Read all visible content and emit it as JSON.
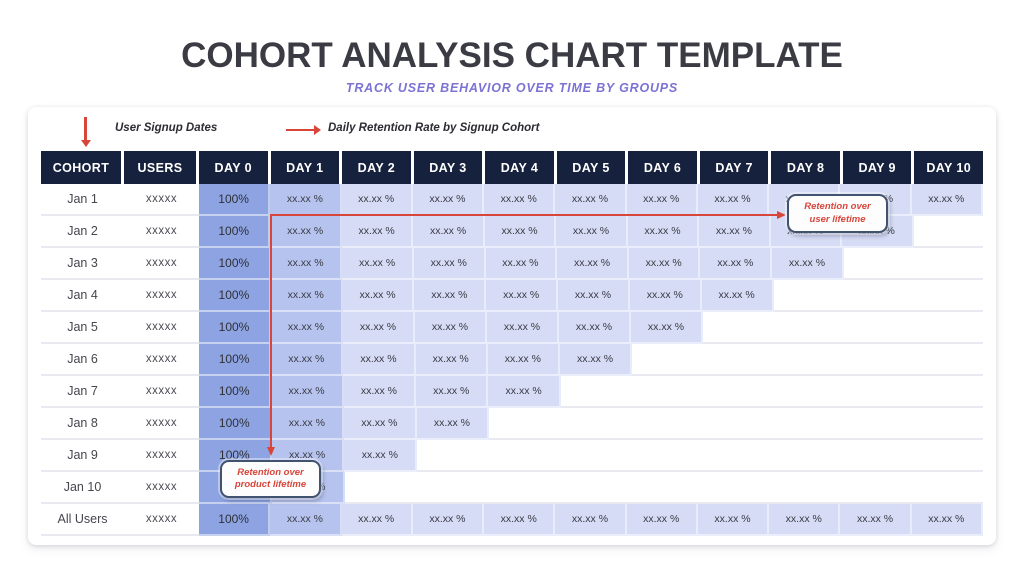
{
  "page": {
    "title": "COHORT ANALYSIS CHART TEMPLATE",
    "subtitle": "TRACK USER BEHAVIOR OVER TIME BY GROUPS"
  },
  "legend": {
    "signup_label": "User Signup Dates",
    "retention_label": "Daily Retention Rate by Signup Cohort"
  },
  "callouts": {
    "user_lifetime": "Retention over user lifetime",
    "product_lifetime": "Retention over product lifetime"
  },
  "table": {
    "columns": [
      "COHORT",
      "USERS",
      "DAY 0",
      "DAY 1",
      "DAY 2",
      "DAY 3",
      "DAY 4",
      "DAY 5",
      "DAY 6",
      "DAY 7",
      "DAY 8",
      "DAY 9",
      "DAY 10"
    ],
    "rows": [
      {
        "cohort": "Jan 1",
        "users": "xxxxx",
        "cells": [
          "100%",
          "xx.xx %",
          "xx.xx %",
          "xx.xx %",
          "xx.xx %",
          "xx.xx %",
          "xx.xx %",
          "xx.xx %",
          "xx.xx %",
          "xx.xx %",
          "xx.xx %"
        ]
      },
      {
        "cohort": "Jan 2",
        "users": "xxxxx",
        "cells": [
          "100%",
          "xx.xx %",
          "xx.xx %",
          "xx.xx %",
          "xx.xx %",
          "xx.xx %",
          "xx.xx %",
          "xx.xx %",
          "xx.xx %",
          "xx.xx %"
        ]
      },
      {
        "cohort": "Jan 3",
        "users": "xxxxx",
        "cells": [
          "100%",
          "xx.xx %",
          "xx.xx %",
          "xx.xx %",
          "xx.xx %",
          "xx.xx %",
          "xx.xx %",
          "xx.xx %",
          "xx.xx %"
        ]
      },
      {
        "cohort": "Jan 4",
        "users": "xxxxx",
        "cells": [
          "100%",
          "xx.xx %",
          "xx.xx %",
          "xx.xx %",
          "xx.xx %",
          "xx.xx %",
          "xx.xx %",
          "xx.xx %"
        ]
      },
      {
        "cohort": "Jan 5",
        "users": "xxxxx",
        "cells": [
          "100%",
          "xx.xx %",
          "xx.xx %",
          "xx.xx %",
          "xx.xx %",
          "xx.xx %",
          "xx.xx %"
        ]
      },
      {
        "cohort": "Jan 6",
        "users": "xxxxx",
        "cells": [
          "100%",
          "xx.xx %",
          "xx.xx %",
          "xx.xx %",
          "xx.xx %",
          "xx.xx %"
        ]
      },
      {
        "cohort": "Jan 7",
        "users": "xxxxx",
        "cells": [
          "100%",
          "xx.xx %",
          "xx.xx %",
          "xx.xx %",
          "xx.xx %"
        ]
      },
      {
        "cohort": "Jan 8",
        "users": "xxxxx",
        "cells": [
          "100%",
          "xx.xx %",
          "xx.xx %",
          "xx.xx %"
        ]
      },
      {
        "cohort": "Jan 9",
        "users": "xxxxx",
        "cells": [
          "100%",
          "xx.xx %",
          "xx.xx %"
        ]
      },
      {
        "cohort": "Jan 10",
        "users": "xxxxx",
        "cells": [
          "100%",
          "xx.xx %"
        ]
      },
      {
        "cohort": "All Users",
        "users": "xxxxx",
        "cells": [
          "100%",
          "xx.xx %",
          "xx.xx %",
          "xx.xx %",
          "xx.xx %",
          "xx.xx %",
          "xx.xx %",
          "xx.xx %",
          "xx.xx %",
          "xx.xx %",
          "xx.xx %"
        ]
      }
    ]
  },
  "colors": {
    "accent_red": "#d8453a",
    "header_bg": "#15213d",
    "day0_fill": "#8ea4e2",
    "day1_fill": "#b6c3ee",
    "light_fill": "#d6dcf5",
    "subtitle": "#7c72d4",
    "callout_border": "#42536f",
    "title_text": "#3b3b44"
  }
}
